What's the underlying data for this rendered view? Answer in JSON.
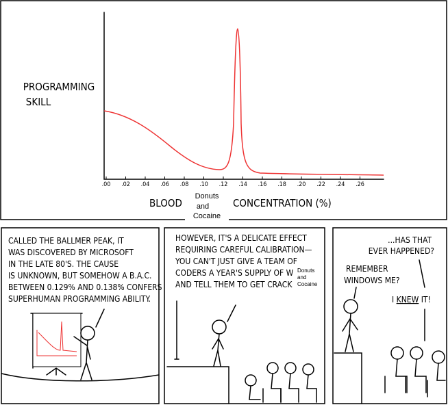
{
  "top_panel": {
    "y_label": [
      "PROGRAMMING",
      "SKILL"
    ],
    "x_ticks": [
      ".00",
      ".02",
      ".04",
      ".06",
      ".08",
      ".10",
      ".12",
      ".14",
      ".16",
      ".18",
      ".20",
      ".22",
      ".24",
      ".26"
    ],
    "x_label_start": "BLOOD",
    "x_label_end": "CONCENTRATION (%)",
    "overlay": [
      "Donuts",
      "and",
      "Cocaine"
    ]
  },
  "panels": [
    {
      "lines": [
        "CALLED THE BALLMER PEAK, IT",
        "WAS DISCOVERED BY MICROSOFT",
        "IN THE LATE 80'S. THE CAUSE",
        "IS UNKNOWN, BUT SOMEHOW A B.A.C.",
        "BETWEEN 0.129% AND 0.138% CONFERS",
        "SUPERHUMAN PROGRAMMING ABILITY."
      ]
    },
    {
      "lines": [
        "HOWEVER, IT'S A DELICATE EFFECT",
        "REQUIRING CAREFUL CALIBRATION—",
        "YOU CAN'T JUST GIVE A TEAM OF",
        "CODERS A YEAR'S SUPPLY OF W",
        "AND TELL THEM TO GET CRACK"
      ],
      "overlay": [
        "Donuts",
        "and",
        "Cocaine"
      ]
    },
    {
      "speech_1": [
        "...HAS THAT",
        "EVER HAPPENED?"
      ],
      "speech_2": [
        "REMEMBER",
        "WINDOWS ME?"
      ],
      "speech_3_start": "I ",
      "speech_3_emph": "KNEW",
      "speech_3_end": " IT!"
    }
  ]
}
